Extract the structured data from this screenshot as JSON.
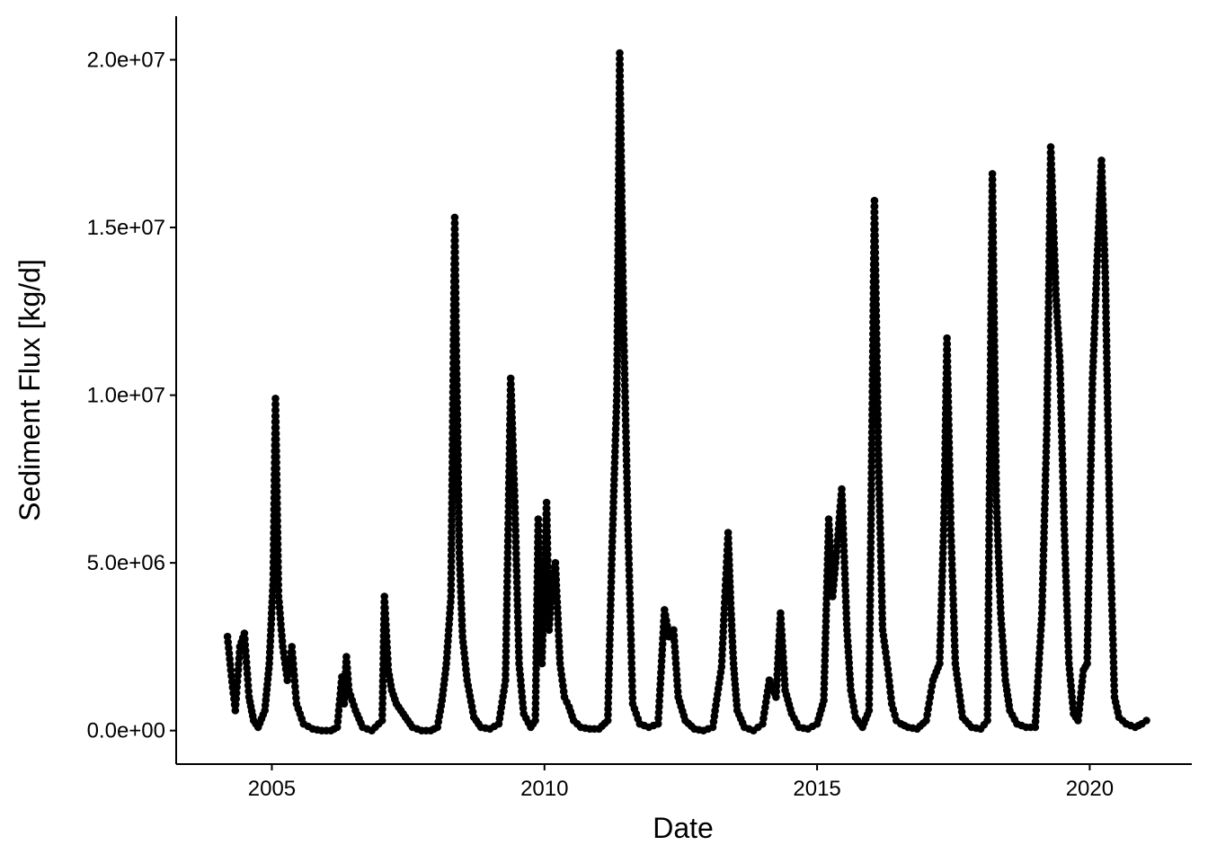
{
  "chart_data": {
    "type": "scatter",
    "title": "",
    "xlabel": "Date",
    "ylabel": "Sediment Flux [kg/d]",
    "x_type": "date",
    "xlim": [
      "2003-04-01",
      "2021-11-15"
    ],
    "ylim": [
      -1000000,
      21300000
    ],
    "x_ticks": [
      "2005-01-01",
      "2010-01-01",
      "2015-01-01",
      "2020-01-01"
    ],
    "x_tick_labels": [
      "2005",
      "2010",
      "2015",
      "2020"
    ],
    "y_ticks": [
      0,
      5000000,
      10000000,
      15000000,
      20000000
    ],
    "y_tick_labels": [
      "0.0e+00",
      "5.0e+06",
      "1.0e+07",
      "1.5e+07",
      "2.0e+07"
    ],
    "grid": false,
    "legend": "none",
    "point_color": "#000000",
    "series": [
      {
        "x": [
          "2004-03-10",
          "2004-04-01",
          "2004-05-01",
          "2004-06-01",
          "2004-07-01",
          "2004-08-01",
          "2004-09-01",
          "2004-10-01",
          "2004-11-15",
          "2004-12-15",
          "2005-01-10",
          "2005-01-25",
          "2005-02-15",
          "2005-03-15",
          "2005-04-15",
          "2005-05-15",
          "2005-06-15",
          "2005-08-01",
          "2005-10-01",
          "2005-12-01",
          "2006-02-01",
          "2006-03-15",
          "2006-04-15",
          "2006-05-01",
          "2006-05-15",
          "2006-06-01",
          "2006-07-15",
          "2006-09-01",
          "2006-11-01",
          "2007-01-10",
          "2007-01-25",
          "2007-02-20",
          "2007-03-15",
          "2007-04-15",
          "2007-05-15",
          "2007-06-15",
          "2007-08-01",
          "2007-10-01",
          "2007-12-01",
          "2008-01-15",
          "2008-02-15",
          "2008-03-15",
          "2008-04-15",
          "2008-05-10",
          "2008-05-20",
          "2008-06-10",
          "2008-07-01",
          "2008-08-01",
          "2008-09-15",
          "2008-11-01",
          "2009-01-01",
          "2009-03-01",
          "2009-04-15",
          "2009-05-20",
          "2009-06-15",
          "2009-07-15",
          "2009-08-15",
          "2009-10-01",
          "2009-11-01",
          "2009-11-20",
          "2009-12-15",
          "2010-01-15",
          "2010-02-01",
          "2010-02-20",
          "2010-03-15",
          "2010-04-15",
          "2010-05-15",
          "2010-06-15",
          "2010-07-15",
          "2010-09-01",
          "2010-11-01",
          "2011-01-01",
          "2011-03-01",
          "2011-04-01",
          "2011-05-01",
          "2011-05-20",
          "2011-06-15",
          "2011-07-15",
          "2011-08-15",
          "2011-10-01",
          "2011-12-01",
          "2012-02-01",
          "2012-03-15",
          "2012-04-15",
          "2012-05-15",
          "2012-06-15",
          "2012-08-01",
          "2012-10-01",
          "2012-12-01",
          "2013-02-01",
          "2013-04-01",
          "2013-05-15",
          "2013-06-01",
          "2013-06-20",
          "2013-07-15",
          "2013-09-01",
          "2013-11-01",
          "2014-01-01",
          "2014-02-15",
          "2014-04-01",
          "2014-05-01",
          "2014-06-01",
          "2014-07-15",
          "2014-09-01",
          "2014-11-01",
          "2015-01-01",
          "2015-02-15",
          "2015-03-20",
          "2015-04-15",
          "2015-05-15",
          "2015-06-15",
          "2015-07-20",
          "2015-08-15",
          "2015-09-15",
          "2015-11-01",
          "2015-12-15",
          "2016-01-20",
          "2016-02-15",
          "2016-03-15",
          "2016-04-15",
          "2016-05-15",
          "2016-06-15",
          "2016-07-15",
          "2016-09-01",
          "2016-11-01",
          "2017-01-01",
          "2017-02-15",
          "2017-04-01",
          "2017-05-01",
          "2017-05-20",
          "2017-06-15",
          "2017-07-15",
          "2017-09-01",
          "2017-11-01",
          "2018-01-01",
          "2018-02-15",
          "2018-03-20",
          "2018-04-15",
          "2018-05-15",
          "2018-06-15",
          "2018-07-15",
          "2018-09-01",
          "2018-11-01",
          "2019-01-01",
          "2019-02-15",
          "2019-03-20",
          "2019-04-15",
          "2019-05-20",
          "2019-06-15",
          "2019-07-15",
          "2019-08-15",
          "2019-09-15",
          "2019-10-15",
          "2019-11-20",
          "2019-12-15",
          "2020-01-20",
          "2020-02-20",
          "2020-03-20",
          "2020-04-15",
          "2020-05-15",
          "2020-06-15",
          "2020-07-15",
          "2020-09-01",
          "2020-11-01",
          "2020-12-15",
          "2021-01-15"
        ],
        "y": [
          2800000,
          1800000,
          600000,
          2500000,
          2900000,
          1000000,
          300000,
          100000,
          600000,
          2000000,
          4500000,
          9900000,
          4000000,
          2500000,
          1500000,
          2500000,
          800000,
          200000,
          50000,
          0,
          0,
          100000,
          1600000,
          800000,
          2200000,
          1200000,
          600000,
          100000,
          0,
          300000,
          4000000,
          1800000,
          1200000,
          800000,
          600000,
          400000,
          100000,
          0,
          0,
          100000,
          900000,
          2000000,
          4000000,
          15300000,
          11500000,
          5300000,
          2800000,
          1500000,
          400000,
          100000,
          50000,
          200000,
          1500000,
          10500000,
          7000000,
          2000000,
          500000,
          100000,
          300000,
          6300000,
          2000000,
          6800000,
          3000000,
          4300000,
          5000000,
          2000000,
          1000000,
          700000,
          300000,
          100000,
          50000,
          50000,
          300000,
          5800000,
          10000000,
          20200000,
          12000000,
          6000000,
          800000,
          200000,
          100000,
          200000,
          3600000,
          2800000,
          3000000,
          1000000,
          300000,
          50000,
          0,
          100000,
          1900000,
          5900000,
          3800000,
          2000000,
          600000,
          100000,
          0,
          200000,
          1500000,
          1000000,
          3500000,
          1200000,
          500000,
          100000,
          50000,
          200000,
          900000,
          6300000,
          4000000,
          5500000,
          7200000,
          3000000,
          1200000,
          400000,
          100000,
          600000,
          15800000,
          8400000,
          3000000,
          2000000,
          800000,
          300000,
          200000,
          100000,
          50000,
          300000,
          1500000,
          2000000,
          6500000,
          11700000,
          6000000,
          2000000,
          400000,
          100000,
          50000,
          300000,
          16600000,
          7000000,
          3500000,
          1500000,
          600000,
          200000,
          100000,
          100000,
          3500000,
          9000000,
          17400000,
          13000000,
          11000000,
          6000000,
          2000000,
          500000,
          300000,
          1800000,
          2000000,
          10500000,
          14000000,
          17000000,
          13500000,
          6000000,
          1000000,
          400000,
          200000,
          100000,
          200000,
          300000
        ]
      }
    ]
  }
}
